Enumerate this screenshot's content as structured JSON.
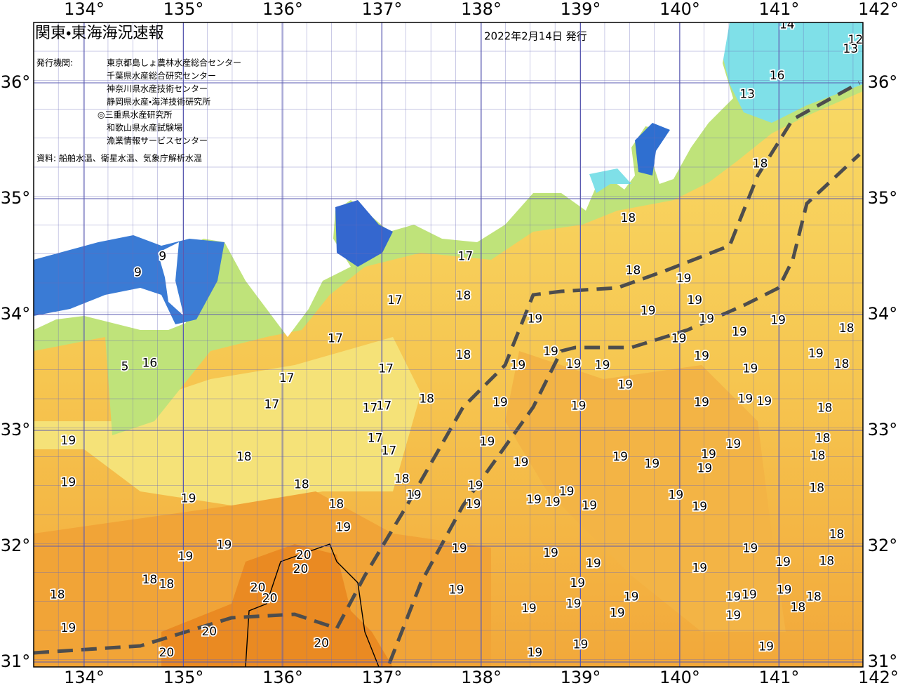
{
  "header": {
    "title": "関東・東海海況速報",
    "date": "2022年2月14日 発行",
    "issuers_label": "発行機関:",
    "issuers": [
      "東京都島しょ農林水産総合センター",
      "千葉県水産総合研究センター",
      "神奈川県水産技術センター",
      "静岡県水産・海洋技術研究所",
      "◎三重県水産研究所",
      "和歌山県水産試験場",
      "漁業情報サービスセンター"
    ],
    "source": "資料: 船舶水温、衛星水温、気象庁解析水温"
  },
  "map": {
    "lon_labels": [
      {
        "value": 134,
        "label": "134°"
      },
      {
        "value": 135,
        "label": "135°"
      },
      {
        "value": 136,
        "label": "136°"
      },
      {
        "value": 137,
        "label": "137°"
      },
      {
        "value": 138,
        "label": "138°"
      },
      {
        "value": 139,
        "label": "139°"
      },
      {
        "value": 140,
        "label": "140°"
      },
      {
        "value": 141,
        "label": "141°"
      },
      {
        "value": 142,
        "label": "142°"
      }
    ],
    "lat_labels": [
      {
        "value": 36,
        "label": "36°"
      },
      {
        "value": 35,
        "label": "35°"
      },
      {
        "value": 34,
        "label": "34°"
      },
      {
        "value": 33,
        "label": "33°"
      },
      {
        "value": 32,
        "label": "32°"
      },
      {
        "value": 31,
        "label": "31°"
      }
    ],
    "isotherm_labels": [
      {
        "text": "14",
        "lon": 141.08,
        "lat": 36.5
      },
      {
        "text": "12",
        "lon": 141.77,
        "lat": 36.37
      },
      {
        "text": "13",
        "lon": 141.72,
        "lat": 36.29
      },
      {
        "text": "16",
        "lon": 140.98,
        "lat": 36.06
      },
      {
        "text": "13",
        "lon": 140.68,
        "lat": 35.9
      },
      {
        "text": "18",
        "lon": 140.81,
        "lat": 35.3
      },
      {
        "text": "18",
        "lon": 139.48,
        "lat": 34.83
      },
      {
        "text": "17",
        "lon": 137.84,
        "lat": 34.5
      },
      {
        "text": "18",
        "lon": 139.53,
        "lat": 34.38
      },
      {
        "text": "19",
        "lon": 140.04,
        "lat": 34.31
      },
      {
        "text": "9",
        "lon": 134.54,
        "lat": 34.36
      },
      {
        "text": "9",
        "lon": 134.79,
        "lat": 34.5
      },
      {
        "text": "17",
        "lon": 137.13,
        "lat": 34.12
      },
      {
        "text": "18",
        "lon": 137.82,
        "lat": 34.16
      },
      {
        "text": "19",
        "lon": 140.15,
        "lat": 34.12
      },
      {
        "text": "19",
        "lon": 138.54,
        "lat": 33.96
      },
      {
        "text": "19",
        "lon": 139.68,
        "lat": 34.03
      },
      {
        "text": "19",
        "lon": 140.27,
        "lat": 33.96
      },
      {
        "text": "19",
        "lon": 140.6,
        "lat": 33.85
      },
      {
        "text": "19",
        "lon": 140.99,
        "lat": 33.95
      },
      {
        "text": "18",
        "lon": 141.68,
        "lat": 33.88
      },
      {
        "text": "17",
        "lon": 136.53,
        "lat": 33.79
      },
      {
        "text": "19",
        "lon": 139.99,
        "lat": 33.79
      },
      {
        "text": "18",
        "lon": 137.82,
        "lat": 33.65
      },
      {
        "text": "19",
        "lon": 138.7,
        "lat": 33.68
      },
      {
        "text": "19",
        "lon": 140.22,
        "lat": 33.64
      },
      {
        "text": "19",
        "lon": 141.37,
        "lat": 33.66
      },
      {
        "text": "5",
        "lon": 134.41,
        "lat": 33.55
      },
      {
        "text": "16",
        "lon": 134.66,
        "lat": 33.58
      },
      {
        "text": "19",
        "lon": 138.37,
        "lat": 33.56
      },
      {
        "text": "19",
        "lon": 138.93,
        "lat": 33.57
      },
      {
        "text": "19",
        "lon": 139.22,
        "lat": 33.56
      },
      {
        "text": "19",
        "lon": 140.71,
        "lat": 33.53
      },
      {
        "text": "18",
        "lon": 141.63,
        "lat": 33.57
      },
      {
        "text": "17",
        "lon": 137.04,
        "lat": 33.53
      },
      {
        "text": "17",
        "lon": 136.04,
        "lat": 33.45
      },
      {
        "text": "19",
        "lon": 139.45,
        "lat": 33.39
      },
      {
        "text": "18",
        "lon": 137.45,
        "lat": 33.27
      },
      {
        "text": "17",
        "lon": 135.89,
        "lat": 33.22
      },
      {
        "text": "19",
        "lon": 138.19,
        "lat": 33.24
      },
      {
        "text": "17",
        "lon": 136.88,
        "lat": 33.19
      },
      {
        "text": "17",
        "lon": 137.02,
        "lat": 33.21
      },
      {
        "text": "19",
        "lon": 138.98,
        "lat": 33.21
      },
      {
        "text": "19",
        "lon": 140.22,
        "lat": 33.24
      },
      {
        "text": "19",
        "lon": 140.66,
        "lat": 33.27
      },
      {
        "text": "19",
        "lon": 140.85,
        "lat": 33.25
      },
      {
        "text": "18",
        "lon": 141.46,
        "lat": 33.19
      },
      {
        "text": "19",
        "lon": 133.84,
        "lat": 32.91
      },
      {
        "text": "17",
        "lon": 136.93,
        "lat": 32.93
      },
      {
        "text": "19",
        "lon": 138.06,
        "lat": 32.9
      },
      {
        "text": "17",
        "lon": 137.07,
        "lat": 32.82
      },
      {
        "text": "18",
        "lon": 141.44,
        "lat": 32.93
      },
      {
        "text": "19",
        "lon": 140.54,
        "lat": 32.88
      },
      {
        "text": "19",
        "lon": 140.29,
        "lat": 32.79
      },
      {
        "text": "18",
        "lon": 141.39,
        "lat": 32.78
      },
      {
        "text": "18",
        "lon": 135.61,
        "lat": 32.77
      },
      {
        "text": "19",
        "lon": 139.4,
        "lat": 32.77
      },
      {
        "text": "19",
        "lon": 139.72,
        "lat": 32.71
      },
      {
        "text": "19",
        "lon": 138.4,
        "lat": 32.72
      },
      {
        "text": "19",
        "lon": 140.25,
        "lat": 32.67
      },
      {
        "text": "19",
        "lon": 133.84,
        "lat": 32.55
      },
      {
        "text": "18",
        "lon": 137.2,
        "lat": 32.58
      },
      {
        "text": "18",
        "lon": 136.19,
        "lat": 32.53
      },
      {
        "text": "19",
        "lon": 137.94,
        "lat": 32.52
      },
      {
        "text": "18",
        "lon": 141.38,
        "lat": 32.5
      },
      {
        "text": "19",
        "lon": 137.32,
        "lat": 32.44
      },
      {
        "text": "19",
        "lon": 135.05,
        "lat": 32.41
      },
      {
        "text": "19",
        "lon": 139.96,
        "lat": 32.44
      },
      {
        "text": "19",
        "lon": 138.86,
        "lat": 32.47
      },
      {
        "text": "19",
        "lon": 138.53,
        "lat": 32.4
      },
      {
        "text": "19",
        "lon": 138.72,
        "lat": 32.38
      },
      {
        "text": "19",
        "lon": 139.09,
        "lat": 32.35
      },
      {
        "text": "18",
        "lon": 136.54,
        "lat": 32.36
      },
      {
        "text": "19",
        "lon": 137.92,
        "lat": 32.36
      },
      {
        "text": "19",
        "lon": 140.2,
        "lat": 32.34
      },
      {
        "text": "19",
        "lon": 136.61,
        "lat": 32.16
      },
      {
        "text": "18",
        "lon": 141.58,
        "lat": 32.1
      },
      {
        "text": "19",
        "lon": 135.41,
        "lat": 32.01
      },
      {
        "text": "19",
        "lon": 137.78,
        "lat": 31.98
      },
      {
        "text": "19",
        "lon": 140.71,
        "lat": 31.98
      },
      {
        "text": "20",
        "lon": 136.21,
        "lat": 31.92
      },
      {
        "text": "19",
        "lon": 135.02,
        "lat": 31.91
      },
      {
        "text": "19",
        "lon": 138.7,
        "lat": 31.94
      },
      {
        "text": "19",
        "lon": 141.04,
        "lat": 31.86
      },
      {
        "text": "18",
        "lon": 141.48,
        "lat": 31.87
      },
      {
        "text": "19",
        "lon": 139.13,
        "lat": 31.85
      },
      {
        "text": "19",
        "lon": 140.2,
        "lat": 31.81
      },
      {
        "text": "20",
        "lon": 136.18,
        "lat": 31.8
      },
      {
        "text": "18",
        "lon": 134.66,
        "lat": 31.71
      },
      {
        "text": "18",
        "lon": 134.83,
        "lat": 31.67
      },
      {
        "text": "19",
        "lon": 138.97,
        "lat": 31.68
      },
      {
        "text": "20",
        "lon": 135.75,
        "lat": 31.64
      },
      {
        "text": "19",
        "lon": 137.75,
        "lat": 31.62
      },
      {
        "text": "19",
        "lon": 141.05,
        "lat": 31.62
      },
      {
        "text": "18",
        "lon": 133.73,
        "lat": 31.58
      },
      {
        "text": "20",
        "lon": 135.87,
        "lat": 31.55
      },
      {
        "text": "19",
        "lon": 140.7,
        "lat": 31.58
      },
      {
        "text": "19",
        "lon": 139.51,
        "lat": 31.56
      },
      {
        "text": "19",
        "lon": 140.54,
        "lat": 31.56
      },
      {
        "text": "19",
        "lon": 138.93,
        "lat": 31.5
      },
      {
        "text": "18",
        "lon": 141.35,
        "lat": 31.56
      },
      {
        "text": "18",
        "lon": 141.19,
        "lat": 31.47
      },
      {
        "text": "19",
        "lon": 139.37,
        "lat": 31.42
      },
      {
        "text": "19",
        "lon": 138.48,
        "lat": 31.46
      },
      {
        "text": "19",
        "lon": 140.54,
        "lat": 31.4
      },
      {
        "text": "19",
        "lon": 133.84,
        "lat": 31.29
      },
      {
        "text": "20",
        "lon": 135.26,
        "lat": 31.26
      },
      {
        "text": "20",
        "lon": 136.39,
        "lat": 31.16
      },
      {
        "text": "19",
        "lon": 140.87,
        "lat": 31.13
      },
      {
        "text": "19",
        "lon": 139.0,
        "lat": 31.15
      },
      {
        "text": "20",
        "lon": 134.83,
        "lat": 31.08
      },
      {
        "text": "19",
        "lon": 138.54,
        "lat": 31.08
      }
    ]
  }
}
